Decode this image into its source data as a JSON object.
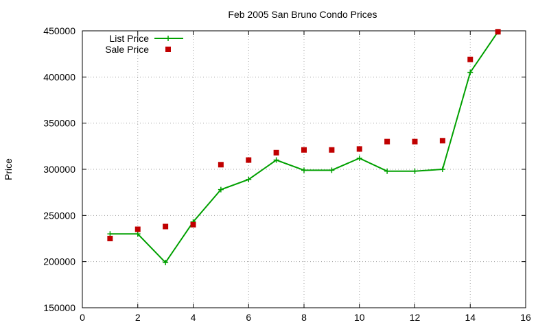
{
  "chart_data": {
    "type": "line",
    "title": "Feb 2005 San Bruno Condo Prices",
    "xlabel": "",
    "ylabel": "Price",
    "xlim": [
      0,
      16
    ],
    "ylim": [
      150000,
      450000
    ],
    "x_ticks": [
      "0",
      "2",
      "4",
      "6",
      "8",
      "10",
      "12",
      "14",
      "16"
    ],
    "y_ticks": [
      "150000",
      "200000",
      "250000",
      "300000",
      "350000",
      "400000",
      "450000"
    ],
    "grid": true,
    "legend_position": "top-left",
    "x": [
      1,
      2,
      3,
      4,
      5,
      6,
      7,
      8,
      9,
      10,
      11,
      12,
      13,
      14,
      15
    ],
    "series": [
      {
        "name": "List Price",
        "style": "linespoints",
        "marker": "plus",
        "color": "#00a000",
        "values": [
          230000,
          230000,
          199000,
          243000,
          278000,
          289000,
          310000,
          299000,
          299000,
          312000,
          298000,
          298000,
          300000,
          405000,
          449000
        ]
      },
      {
        "name": "Sale Price",
        "style": "points",
        "marker": "square",
        "color": "#c00000",
        "values": [
          225000,
          235000,
          238000,
          240000,
          305000,
          310000,
          318000,
          321000,
          321000,
          322000,
          330000,
          330000,
          331000,
          419000,
          449000
        ]
      }
    ]
  }
}
